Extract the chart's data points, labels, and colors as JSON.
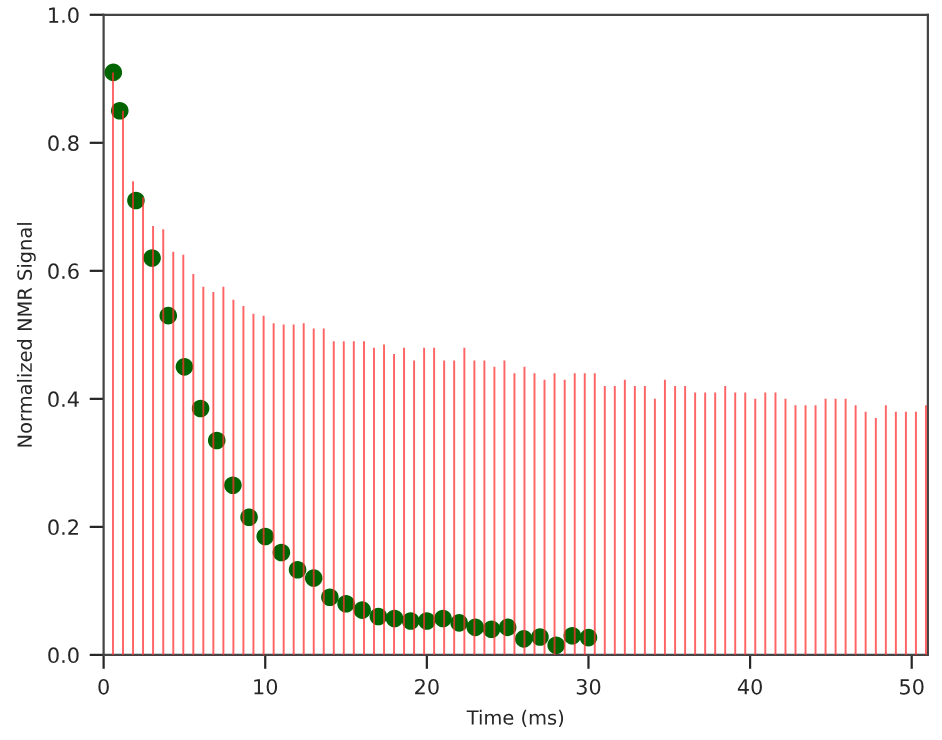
{
  "chart_data": {
    "type": "bar",
    "xlabel": "Time (ms)",
    "ylabel": "Normalized NMR Signal",
    "xlim": [
      0,
      51
    ],
    "xticks": [
      0,
      10,
      20,
      30,
      40,
      50
    ],
    "ylim": [
      0,
      1.0
    ],
    "yticks": [
      {
        "value": 0,
        "label": "0.0"
      },
      {
        "value": 0.2,
        "label": "0.2"
      },
      {
        "value": 0.4,
        "label": "0.4"
      },
      {
        "value": 0.6,
        "label": "0.6"
      },
      {
        "value": 0.8,
        "label": "0.8"
      },
      {
        "value": 1.0,
        "label": "1.0"
      }
    ],
    "grid": false,
    "legend": false,
    "series": [
      {
        "color": "#ff3030",
        "x": [
          0.58,
          1.2,
          1.82,
          2.44,
          3.06,
          3.69,
          4.31,
          4.93,
          5.55,
          6.17,
          6.79,
          7.41,
          8.03,
          8.65,
          9.27,
          9.9,
          10.52,
          11.14,
          11.76,
          12.38,
          13.0,
          13.62,
          14.24,
          14.86,
          15.48,
          16.11,
          16.73,
          17.35,
          17.97,
          18.59,
          19.21,
          19.83,
          20.45,
          21.07,
          21.69,
          22.32,
          22.94,
          23.56,
          24.18,
          24.8,
          25.42,
          26.04,
          26.66,
          27.28,
          27.9,
          28.53,
          29.15,
          29.77,
          30.39,
          31.01,
          31.63,
          32.25,
          32.87,
          33.49,
          34.11,
          34.73,
          35.36,
          35.98,
          36.6,
          37.22,
          37.84,
          38.46,
          39.08,
          39.7,
          40.32,
          40.94,
          41.57,
          42.19,
          42.81,
          43.43,
          44.05,
          44.67,
          45.29,
          45.91,
          46.53,
          47.15,
          47.78,
          48.4,
          49.02,
          49.64,
          50.26,
          50.88
        ],
        "values": [
          0.91,
          0.85,
          0.74,
          0.715,
          0.67,
          0.665,
          0.63,
          0.625,
          0.595,
          0.575,
          0.567,
          0.575,
          0.555,
          0.545,
          0.533,
          0.53,
          0.518,
          0.516,
          0.516,
          0.518,
          0.51,
          0.51,
          0.49,
          0.49,
          0.49,
          0.49,
          0.48,
          0.485,
          0.47,
          0.48,
          0.46,
          0.48,
          0.48,
          0.46,
          0.46,
          0.48,
          0.46,
          0.46,
          0.45,
          0.46,
          0.44,
          0.45,
          0.44,
          0.43,
          0.44,
          0.43,
          0.44,
          0.44,
          0.44,
          0.42,
          0.42,
          0.43,
          0.42,
          0.42,
          0.4,
          0.43,
          0.42,
          0.42,
          0.41,
          0.41,
          0.41,
          0.42,
          0.41,
          0.41,
          0.4,
          0.41,
          0.41,
          0.4,
          0.39,
          0.39,
          0.39,
          0.4,
          0.4,
          0.4,
          0.39,
          0.38,
          0.37,
          0.39,
          0.38,
          0.38,
          0.38,
          0.39
        ]
      },
      {
        "type": "scatter",
        "color": "#006400",
        "marker": "circle",
        "x": [
          0.6,
          1,
          2,
          3,
          4,
          5,
          6,
          7,
          8,
          9,
          10,
          11,
          12,
          13,
          14,
          15,
          16,
          17,
          18,
          19,
          20,
          21,
          22,
          23,
          24,
          25,
          26,
          27,
          28,
          29,
          30
        ],
        "values": [
          0.91,
          0.85,
          0.71,
          0.62,
          0.53,
          0.45,
          0.385,
          0.335,
          0.265,
          0.215,
          0.185,
          0.16,
          0.133,
          0.12,
          0.09,
          0.08,
          0.07,
          0.06,
          0.057,
          0.053,
          0.053,
          0.057,
          0.05,
          0.043,
          0.04,
          0.043,
          0.025,
          0.028,
          0.015,
          0.03,
          0.027
        ]
      }
    ]
  }
}
